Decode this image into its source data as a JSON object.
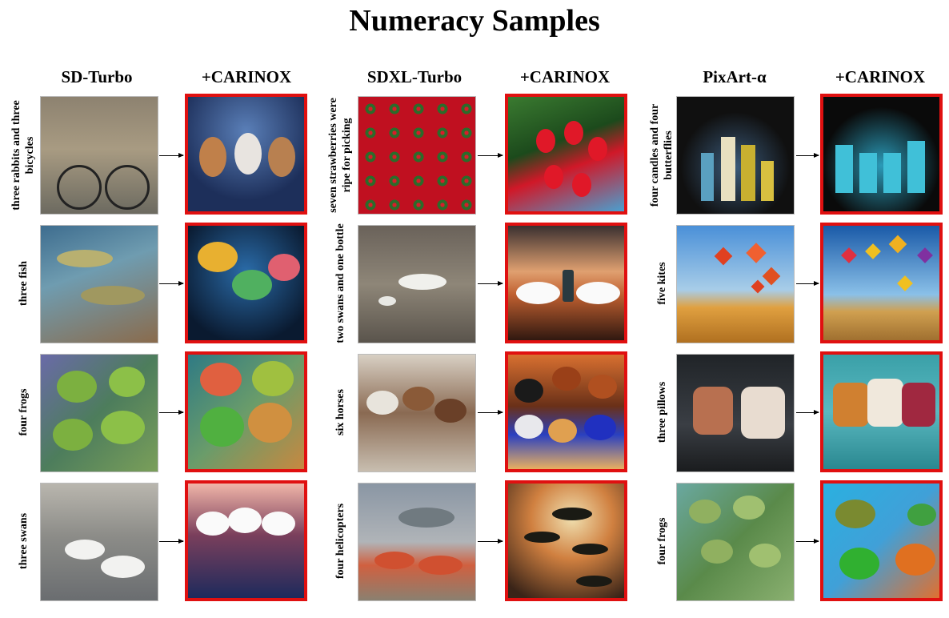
{
  "title": "Numeracy Samples",
  "headers": [
    "SD-Turbo",
    "+CARINOX",
    "SDXL-Turbo",
    "+CARINOX",
    "PixArt-α",
    "+CARINOX"
  ],
  "panels": [
    {
      "model": "SD-Turbo",
      "prompts": [
        "three rabbits and three bicycles",
        "three fish",
        "four frogs",
        "three swans"
      ]
    },
    {
      "model": "SDXL-Turbo",
      "prompts": [
        "seven strawberries were ripe for picking",
        "two swans and one bottle",
        "six horses",
        "four helicopters"
      ]
    },
    {
      "model": "PixArt-α",
      "prompts": [
        "four candles and four butterflies",
        "five kites",
        "three pillows",
        "four frogs"
      ]
    }
  ]
}
